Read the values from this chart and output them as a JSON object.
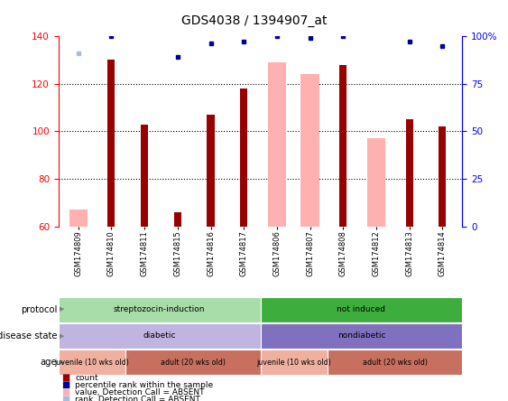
{
  "title": "GDS4038 / 1394907_at",
  "samples": [
    "GSM174809",
    "GSM174810",
    "GSM174811",
    "GSM174815",
    "GSM174816",
    "GSM174817",
    "GSM174806",
    "GSM174807",
    "GSM174808",
    "GSM174812",
    "GSM174813",
    "GSM174814"
  ],
  "ylim": [
    60,
    140
  ],
  "yticks_left": [
    60,
    80,
    100,
    120,
    140
  ],
  "yticks_right": [
    0,
    25,
    50,
    75,
    100
  ],
  "red_bars": [
    null,
    130,
    103,
    66,
    107,
    118,
    null,
    null,
    128,
    null,
    105,
    102
  ],
  "pink_bars": [
    67,
    null,
    null,
    null,
    null,
    null,
    129,
    124,
    null,
    97,
    null,
    null
  ],
  "blue_squares_val": [
    null,
    100,
    null,
    89,
    96,
    97,
    100,
    99,
    100,
    null,
    97,
    95
  ],
  "light_blue_squares_val": [
    91,
    null,
    null,
    null,
    null,
    null,
    null,
    null,
    null,
    null,
    null,
    null
  ],
  "protocol_groups": [
    {
      "label": "streptozocin-induction",
      "start": 0,
      "end": 6,
      "color": "#A8DCA8"
    },
    {
      "label": "not induced",
      "start": 6,
      "end": 12,
      "color": "#3DAE3D"
    }
  ],
  "disease_groups": [
    {
      "label": "diabetic",
      "start": 0,
      "end": 6,
      "color": "#C0B4E0"
    },
    {
      "label": "nondiabetic",
      "start": 6,
      "end": 12,
      "color": "#8070C0"
    }
  ],
  "age_groups": [
    {
      "label": "juvenile (10 wks old)",
      "start": 0,
      "end": 2,
      "color": "#F0B0A0"
    },
    {
      "label": "adult (20 wks old)",
      "start": 2,
      "end": 6,
      "color": "#C87060"
    },
    {
      "label": "juvenile (10 wks old)",
      "start": 6,
      "end": 8,
      "color": "#F0B0A0"
    },
    {
      "label": "adult (20 wks old)",
      "start": 8,
      "end": 12,
      "color": "#C87060"
    }
  ],
  "red_color": "#990000",
  "pink_color": "#FFB0B0",
  "blue_color": "#000099",
  "light_blue_color": "#AABBDD",
  "bar_bottom": 60
}
